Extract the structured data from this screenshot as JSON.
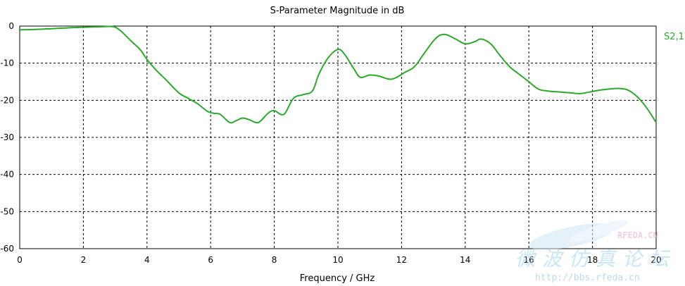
{
  "chart_data": {
    "type": "line",
    "title": "S-Parameter Magnitude in dB",
    "xlabel": "Frequency / GHz",
    "ylabel": "",
    "xlim": [
      0,
      20
    ],
    "ylim": [
      -60,
      0
    ],
    "xticks": [
      0,
      2,
      4,
      6,
      8,
      10,
      12,
      14,
      16,
      18,
      20
    ],
    "yticks": [
      0,
      -10,
      -20,
      -30,
      -40,
      -50,
      -60
    ],
    "grid": true,
    "legend_position": "right",
    "series": [
      {
        "name": "S2,1",
        "color": "#2aaa2a",
        "x": [
          0,
          0.5,
          1,
          1.5,
          2,
          2.5,
          2.8,
          3.0,
          3.2,
          3.5,
          3.8,
          4.0,
          4.3,
          4.6,
          5.0,
          5.3,
          5.6,
          5.9,
          6.1,
          6.3,
          6.6,
          6.8,
          7.0,
          7.2,
          7.5,
          7.8,
          8.0,
          8.3,
          8.6,
          8.9,
          9.2,
          9.4,
          9.7,
          10.0,
          10.2,
          10.5,
          10.7,
          11.0,
          11.3,
          11.6,
          11.8,
          12.1,
          12.4,
          12.7,
          13.0,
          13.2,
          13.4,
          13.7,
          14.0,
          14.3,
          14.5,
          14.8,
          15.1,
          15.4,
          15.7,
          16.0,
          16.3,
          16.6,
          17.0,
          17.3,
          17.6,
          17.9,
          18.2,
          18.5,
          18.8,
          19.1,
          19.4,
          19.7,
          20.0
        ],
        "y": [
          -1,
          -0.9,
          -0.7,
          -0.5,
          -0.3,
          -0.2,
          -0.1,
          -0.3,
          -1.5,
          -4,
          -6.5,
          -9,
          -12,
          -14.5,
          -18,
          -19.5,
          -21,
          -23,
          -23.5,
          -23.8,
          -26,
          -25.5,
          -24.8,
          -25.2,
          -26,
          -23.5,
          -22.8,
          -23.8,
          -19.5,
          -18.5,
          -17.5,
          -13,
          -8.5,
          -6.3,
          -7.5,
          -11.5,
          -13.8,
          -13.2,
          -13.5,
          -14.3,
          -14,
          -12.5,
          -11,
          -7.5,
          -4,
          -2.5,
          -2.3,
          -3.5,
          -4.8,
          -4.2,
          -3.5,
          -4.8,
          -8,
          -11,
          -13,
          -15,
          -17,
          -17.5,
          -17.8,
          -18,
          -18.2,
          -17.8,
          -17.3,
          -17,
          -16.8,
          -17.2,
          -19,
          -22,
          -26
        ]
      }
    ]
  },
  "watermark": {
    "brand": "RFEDA.CN",
    "site_name_cn": "微波仿真论坛",
    "url": "http://bbs.rfeda.cn"
  }
}
